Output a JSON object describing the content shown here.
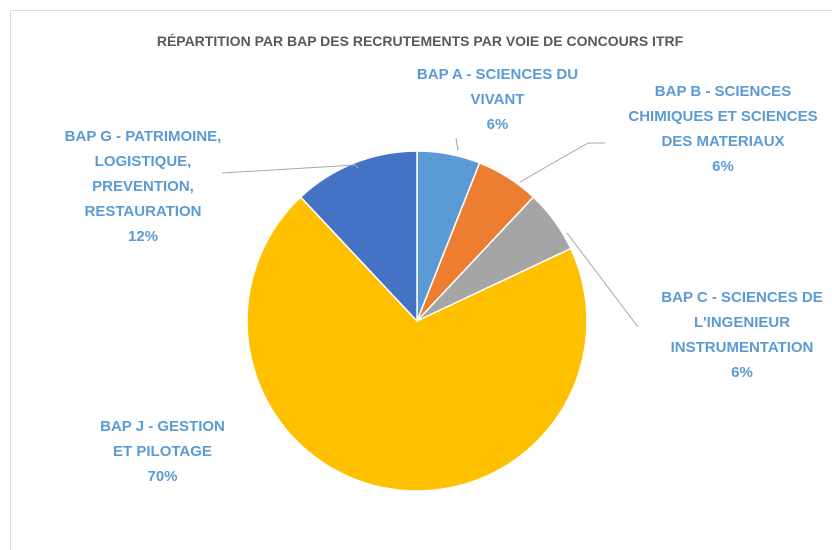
{
  "chart_data": {
    "type": "pie",
    "title": "RÉPARTITION PAR BAP DES RECRUTEMENTS PAR VOIE DE CONCOURS ITRF",
    "categories": [
      "BAP A - SCIENCES DU VIVANT",
      "BAP B - SCIENCES CHIMIQUES ET SCIENCES DES MATERIAUX",
      "BAP C - SCIENCES DE L'INGENIEUR INSTRUMENTATION",
      "BAP J - GESTION ET PILOTAGE",
      "BAP G - PATRIMOINE, LOGISTIQUE, PREVENTION, RESTAURATION"
    ],
    "values": [
      6,
      6,
      6,
      70,
      12
    ],
    "value_labels": [
      "6%",
      "6%",
      "6%",
      "70%",
      "12%"
    ],
    "colors": [
      "#5b9bd5",
      "#ed7d31",
      "#a5a5a5",
      "#ffc000",
      "#4472c4"
    ]
  }
}
